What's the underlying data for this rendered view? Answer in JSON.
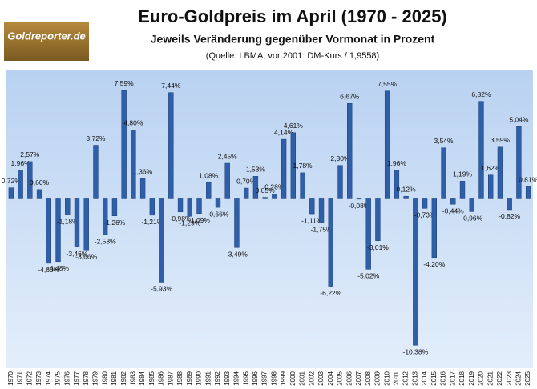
{
  "logo": {
    "text": "Goldreporter.de"
  },
  "chart_data": {
    "type": "bar",
    "title": "Euro-Goldpreis im April (1970 - 2025)",
    "subtitle": "Jeweils Veränderung gegenüber Vormonat in Prozent",
    "note": "(Quelle: LBMA; vor 2001: DM-Kurs / 1,9558)",
    "categories": [
      "1970",
      "1971",
      "1972",
      "1973",
      "1974",
      "1975",
      "1976",
      "1977",
      "1978",
      "1979",
      "1980",
      "1981",
      "1982",
      "1983",
      "1984",
      "1985",
      "1986",
      "1987",
      "1988",
      "1989",
      "1990",
      "1991",
      "1992",
      "1993",
      "1994",
      "1995",
      "1996",
      "1997",
      "1998",
      "1999",
      "2000",
      "2001",
      "2002",
      "2003",
      "2004",
      "2005",
      "2006",
      "2007",
      "2008",
      "2009",
      "2010",
      "2011",
      "2012",
      "2013",
      "2014",
      "2015",
      "2016",
      "2017",
      "2018",
      "2019",
      "2020",
      "2021",
      "2022",
      "2023",
      "2024",
      "2025"
    ],
    "values": [
      0.72,
      1.96,
      2.57,
      0.6,
      -4.6,
      -4.48,
      -1.18,
      -3.46,
      -3.66,
      3.72,
      -2.58,
      -1.26,
      7.59,
      4.8,
      1.36,
      -1.21,
      -5.93,
      7.44,
      -0.98,
      -1.29,
      -1.09,
      1.08,
      -0.66,
      2.45,
      -3.49,
      0.7,
      1.53,
      0.05,
      0.28,
      4.14,
      4.61,
      1.78,
      -1.11,
      -1.75,
      -6.22,
      2.3,
      6.67,
      -0.08,
      -5.02,
      -3.01,
      7.55,
      1.96,
      0.12,
      -10.38,
      -0.73,
      -4.2,
      3.54,
      -0.44,
      1.19,
      -0.96,
      6.82,
      1.62,
      3.59,
      -0.82,
      5.04,
      0.81
    ],
    "value_labels": [
      "0,72%",
      "1,96%",
      "2,57%",
      "0,60%",
      "-4,60%",
      "-4,48%",
      "-1,18%",
      "-3,46%",
      "-3,66%",
      "3,72%",
      "-2,58%",
      "-1,26%",
      "7,59%",
      "4,80%",
      "1,36%",
      "-1,21%",
      "-5,93%",
      "7,44%",
      "-0,98%",
      "-1,29%",
      "-1,09%",
      "1,08%",
      "-0,66%",
      "2,45%",
      "-3,49%",
      "0,70%",
      "1,53%",
      "0,05%",
      "0,28%",
      "4,14%",
      "4,61%",
      "1,78%",
      "-1,11%",
      "-1,75%",
      "-6,22%",
      "2,30%",
      "6,67%",
      "-0,08%",
      "-5,02%",
      "-3,01%",
      "7,55%",
      "1,96%",
      "0,12%",
      "-10,38%",
      "-0,73%",
      "-4,20%",
      "3,54%",
      "-0,44%",
      "1,19%",
      "-0,96%",
      "6,82%",
      "1,62%",
      "3,59%",
      "-0,82%",
      "5,04%",
      "0,81%"
    ],
    "color": "#2e5fa8",
    "ylim": [
      -12,
      9
    ]
  }
}
